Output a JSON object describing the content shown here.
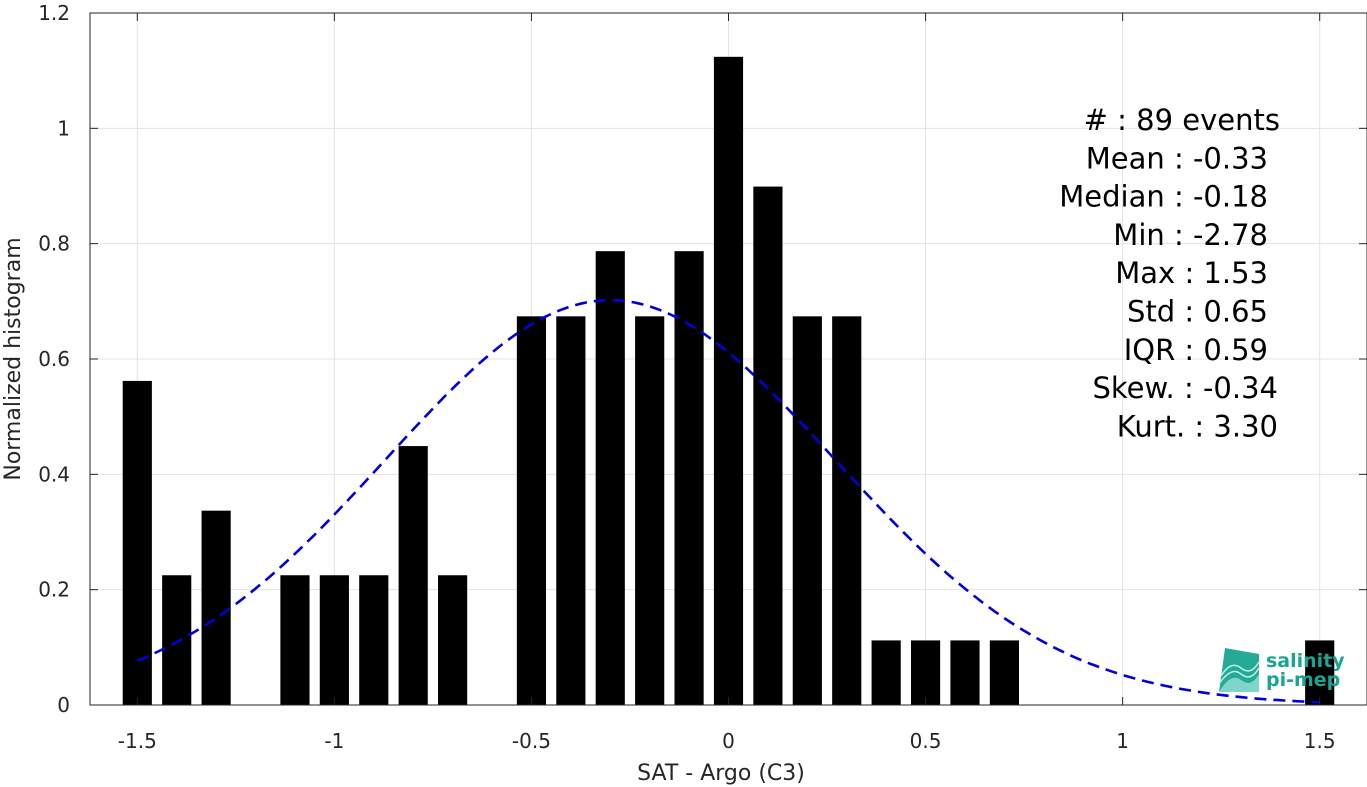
{
  "chart_data": {
    "type": "bar",
    "title": "",
    "xlabel": "SAT - Argo (C3)",
    "ylabel": "Normalized histogram",
    "xlim": [
      -1.62,
      1.62
    ],
    "ylim": [
      0,
      1.2
    ],
    "xticks": [
      -1.5,
      -1,
      -0.5,
      0,
      0.5,
      1,
      1.5
    ],
    "xtick_labels": [
      "-1.5",
      "-1",
      "-0.5",
      "0",
      "0.5",
      "1",
      "1.5"
    ],
    "yticks": [
      0,
      0.2,
      0.4,
      0.6,
      0.8,
      1,
      1.2
    ],
    "ytick_labels": [
      "0",
      "0.2",
      "0.4",
      "0.6",
      "0.8",
      "1",
      "1.2"
    ],
    "grid": true,
    "bin_width": 0.1,
    "bar_color": "#000000",
    "bars": [
      {
        "x": -1.5,
        "value": 0.562
      },
      {
        "x": -1.4,
        "value": 0.225
      },
      {
        "x": -1.3,
        "value": 0.337
      },
      {
        "x": -1.2,
        "value": 0
      },
      {
        "x": -1.1,
        "value": 0.225
      },
      {
        "x": -1.0,
        "value": 0.225
      },
      {
        "x": -0.9,
        "value": 0.225
      },
      {
        "x": -0.8,
        "value": 0.449
      },
      {
        "x": -0.7,
        "value": 0.225
      },
      {
        "x": -0.6,
        "value": 0
      },
      {
        "x": -0.5,
        "value": 0.674
      },
      {
        "x": -0.4,
        "value": 0.674
      },
      {
        "x": -0.3,
        "value": 0.787
      },
      {
        "x": -0.2,
        "value": 0.674
      },
      {
        "x": -0.1,
        "value": 0.787
      },
      {
        "x": 0.0,
        "value": 1.124
      },
      {
        "x": 0.1,
        "value": 0.899
      },
      {
        "x": 0.2,
        "value": 0.674
      },
      {
        "x": 0.3,
        "value": 0.674
      },
      {
        "x": 0.4,
        "value": 0.112
      },
      {
        "x": 0.5,
        "value": 0.112
      },
      {
        "x": 0.6,
        "value": 0.112
      },
      {
        "x": 0.7,
        "value": 0.112
      },
      {
        "x": 0.8,
        "value": 0
      },
      {
        "x": 0.9,
        "value": 0
      },
      {
        "x": 1.0,
        "value": 0
      },
      {
        "x": 1.1,
        "value": 0
      },
      {
        "x": 1.2,
        "value": 0
      },
      {
        "x": 1.3,
        "value": 0
      },
      {
        "x": 1.4,
        "value": 0
      },
      {
        "x": 1.5,
        "value": 0.112
      }
    ],
    "fit_curve": {
      "type": "gaussian",
      "style": "dashed",
      "color": "#0000dd",
      "mean": -0.3,
      "peak": 0.702,
      "std": 0.57,
      "x_range": [
        -1.5,
        1.5
      ]
    },
    "stats_lines": [
      "#  : 89 events",
      "Mean : -0.33",
      "Median : -0.18",
      "Min : -2.78",
      "Max : 1.53",
      "Std : 0.65",
      "IQR : 0.59",
      "Skew. : -0.34",
      "Kurt. : 3.30"
    ]
  },
  "logo": {
    "line1": "salinity",
    "line2": "pi-mep",
    "color": "#1aa592"
  }
}
